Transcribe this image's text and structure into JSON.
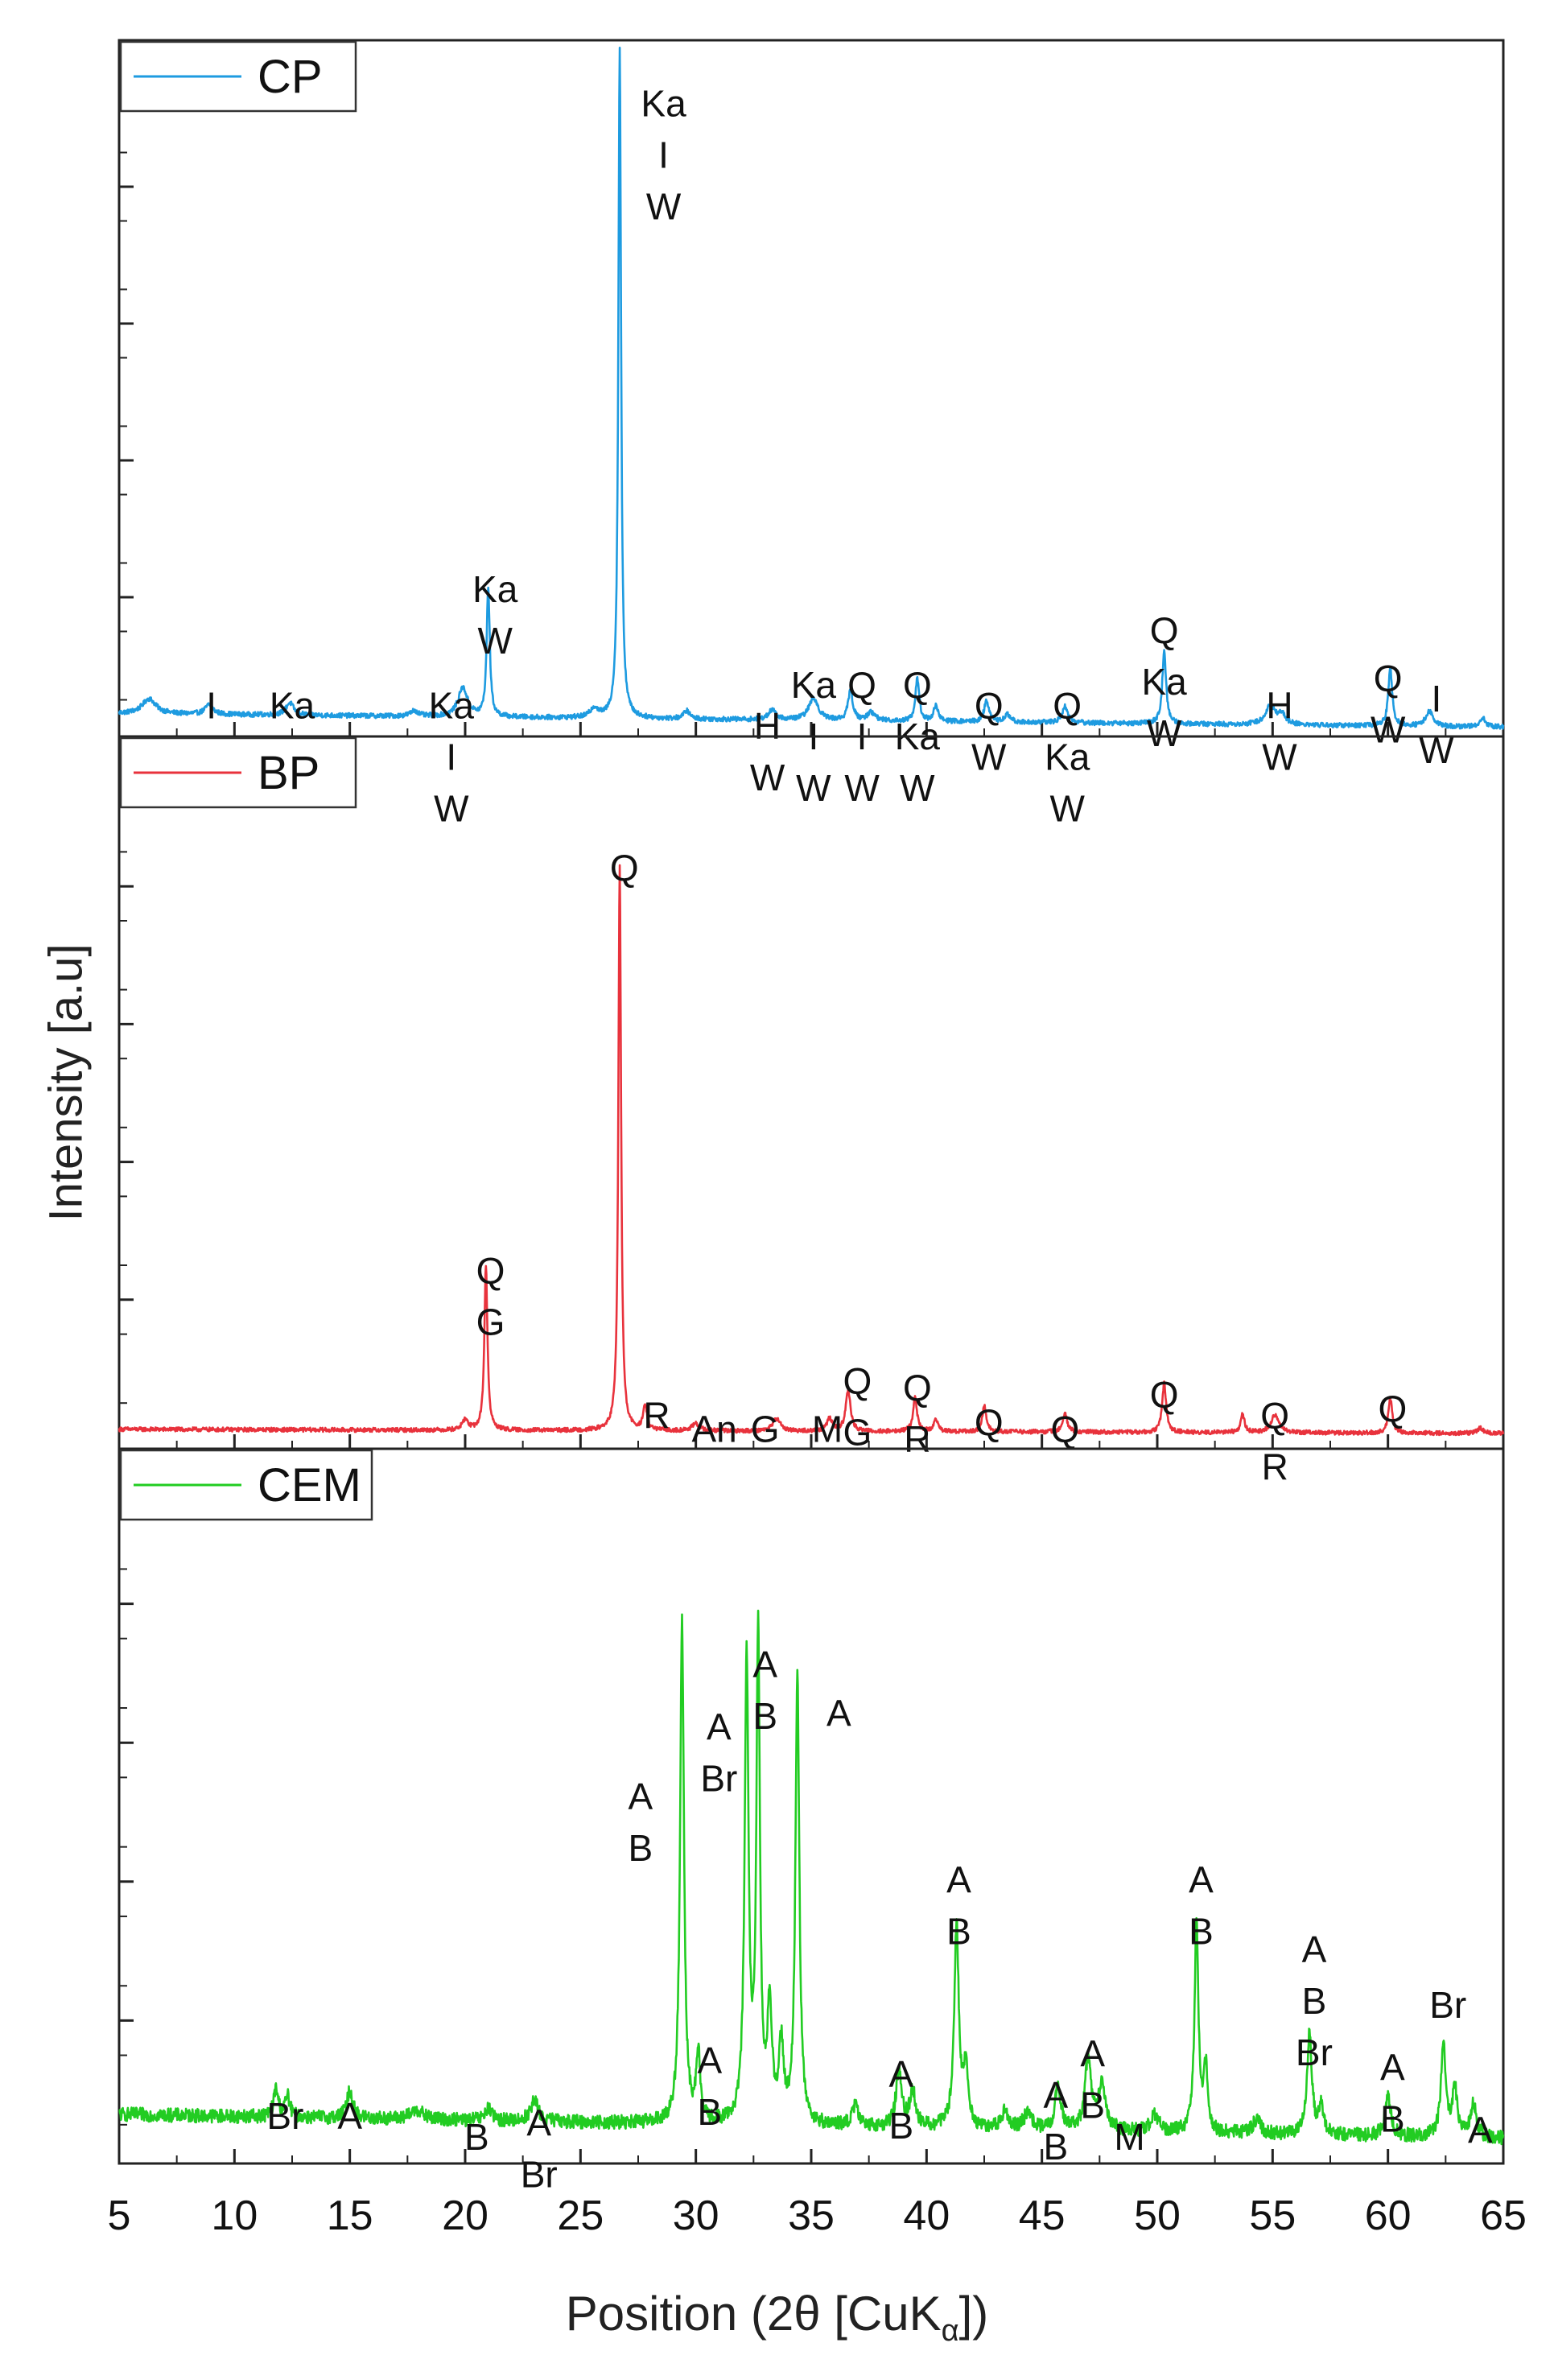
{
  "chart_data": {
    "type": "line",
    "xlabel": {
      "prefix": "Position (2θ [CuK",
      "subscript": "α",
      "suffix": "])"
    },
    "ylabel": "Intensity [a.u]",
    "xlim": [
      5,
      65
    ],
    "x_ticks": [
      5,
      10,
      15,
      20,
      25,
      30,
      35,
      40,
      45,
      50,
      55,
      60,
      65
    ],
    "x_tick_labels": [
      "5",
      "10",
      "15",
      "20",
      "25",
      "30",
      "35",
      "40",
      "45",
      "50",
      "55",
      "60",
      "65"
    ],
    "panels": [
      {
        "legend": "CP",
        "color": "#1e9be0",
        "ylim": [
          0,
          100
        ],
        "baseline": 3,
        "baseline_end": 1,
        "noise": 0.35,
        "peaks": [
          {
            "x": 6.3,
            "h": 2.2,
            "w": 0.35
          },
          {
            "x": 8.9,
            "h": 1.4,
            "w": 0.2
          },
          {
            "x": 12.4,
            "h": 1.8,
            "w": 0.2
          },
          {
            "x": 17.8,
            "h": 0.8,
            "w": 0.2
          },
          {
            "x": 19.9,
            "h": 4.2,
            "w": 0.25
          },
          {
            "x": 21.0,
            "h": 19,
            "w": 0.08
          },
          {
            "x": 25.6,
            "h": 1.4,
            "w": 0.2
          },
          {
            "x": 26.7,
            "h": 98,
            "w": 0.07
          },
          {
            "x": 29.6,
            "h": 1.2,
            "w": 0.15
          },
          {
            "x": 33.3,
            "h": 1.4,
            "w": 0.2
          },
          {
            "x": 35.1,
            "h": 3.2,
            "w": 0.25
          },
          {
            "x": 36.7,
            "h": 4.4,
            "w": 0.12
          },
          {
            "x": 37.6,
            "h": 1.2,
            "w": 0.2
          },
          {
            "x": 39.6,
            "h": 6.2,
            "w": 0.1
          },
          {
            "x": 40.4,
            "h": 2.2,
            "w": 0.12
          },
          {
            "x": 42.6,
            "h": 3.2,
            "w": 0.12
          },
          {
            "x": 43.5,
            "h": 1.1,
            "w": 0.15
          },
          {
            "x": 46.0,
            "h": 2.4,
            "w": 0.15
          },
          {
            "x": 50.3,
            "h": 10.5,
            "w": 0.1
          },
          {
            "x": 54.9,
            "h": 2.8,
            "w": 0.25
          },
          {
            "x": 55.4,
            "h": 1.4,
            "w": 0.2
          },
          {
            "x": 60.1,
            "h": 8.5,
            "w": 0.1
          },
          {
            "x": 61.8,
            "h": 2.2,
            "w": 0.2
          },
          {
            "x": 64.1,
            "h": 1.3,
            "w": 0.15
          }
        ],
        "annotations": [
          {
            "x": 9.0,
            "y": 7.5,
            "lines": [
              "I"
            ]
          },
          {
            "x": 12.5,
            "y": 7.5,
            "lines": [
              "Ka"
            ]
          },
          {
            "x": 19.4,
            "y": 7.5,
            "lines": [
              "Ka",
              "I",
              "W"
            ]
          },
          {
            "x": 21.3,
            "y": 24.5,
            "lines": [
              "Ka",
              "W"
            ]
          },
          {
            "x": 28.6,
            "y": 95.5,
            "lines": [
              "Ka",
              "I",
              "W"
            ]
          },
          {
            "x": 33.1,
            "y": 4.5,
            "lines": [
              "H",
              "W"
            ]
          },
          {
            "x": 35.1,
            "y": 10.5,
            "lines": [
              "Ka",
              "I",
              "W"
            ]
          },
          {
            "x": 37.2,
            "y": 10.5,
            "lines": [
              "Q",
              "I",
              "W"
            ]
          },
          {
            "x": 39.6,
            "y": 10.5,
            "lines": [
              "Q",
              "Ka",
              "W"
            ]
          },
          {
            "x": 42.7,
            "y": 7.5,
            "lines": [
              "Q",
              "W"
            ]
          },
          {
            "x": 46.1,
            "y": 7.5,
            "lines": [
              "Q",
              "Ka",
              "W"
            ]
          },
          {
            "x": 50.3,
            "y": 18.5,
            "lines": [
              "Q",
              "Ka",
              "W"
            ]
          },
          {
            "x": 55.3,
            "y": 7.5,
            "lines": [
              "H",
              "W"
            ]
          },
          {
            "x": 60.0,
            "y": 11.5,
            "lines": [
              "Q",
              "W"
            ]
          },
          {
            "x": 62.1,
            "y": 8.5,
            "lines": [
              "I",
              "W"
            ]
          }
        ]
      },
      {
        "legend": "BP",
        "color": "#e8323c",
        "ylim": [
          0,
          100
        ],
        "baseline": 1.2,
        "baseline_end": 0.6,
        "noise": 0.3,
        "peaks": [
          {
            "x": 20.0,
            "h": 1.5,
            "w": 0.15
          },
          {
            "x": 20.9,
            "h": 24,
            "w": 0.08
          },
          {
            "x": 26.7,
            "h": 82,
            "w": 0.07
          },
          {
            "x": 27.8,
            "h": 3.5,
            "w": 0.1
          },
          {
            "x": 30.0,
            "h": 1.0,
            "w": 0.2
          },
          {
            "x": 33.5,
            "h": 1.8,
            "w": 0.2
          },
          {
            "x": 35.8,
            "h": 1.8,
            "w": 0.15
          },
          {
            "x": 36.6,
            "h": 6.0,
            "w": 0.12
          },
          {
            "x": 39.5,
            "h": 5.0,
            "w": 0.1
          },
          {
            "x": 40.4,
            "h": 1.6,
            "w": 0.12
          },
          {
            "x": 42.5,
            "h": 3.8,
            "w": 0.1
          },
          {
            "x": 46.0,
            "h": 2.6,
            "w": 0.12
          },
          {
            "x": 50.3,
            "h": 7.2,
            "w": 0.1
          },
          {
            "x": 53.7,
            "h": 2.6,
            "w": 0.1
          },
          {
            "x": 55.1,
            "h": 2.6,
            "w": 0.2
          },
          {
            "x": 60.1,
            "h": 5.0,
            "w": 0.1
          },
          {
            "x": 64.0,
            "h": 0.8,
            "w": 0.15
          }
        ],
        "annotations": [
          {
            "x": 21.1,
            "y": 27.5,
            "lines": [
              "Q",
              "G"
            ]
          },
          {
            "x": 26.9,
            "y": 86,
            "lines": [
              "Q"
            ]
          },
          {
            "x": 28.3,
            "y": 6.5,
            "lines": [
              "R"
            ]
          },
          {
            "x": 30.8,
            "y": 4.5,
            "lines": [
              "An"
            ]
          },
          {
            "x": 33.0,
            "y": 4.5,
            "lines": [
              "G"
            ]
          },
          {
            "x": 35.7,
            "y": 4.5,
            "lines": [
              "M"
            ]
          },
          {
            "x": 37.0,
            "y": 11.5,
            "lines": [
              "Q",
              "G"
            ]
          },
          {
            "x": 39.6,
            "y": 10.5,
            "lines": [
              "Q",
              "R"
            ]
          },
          {
            "x": 42.7,
            "y": 5.5,
            "lines": [
              "Q"
            ]
          },
          {
            "x": 46.0,
            "y": 4.5,
            "lines": [
              "Q"
            ]
          },
          {
            "x": 50.3,
            "y": 9.5,
            "lines": [
              "Q"
            ]
          },
          {
            "x": 55.1,
            "y": 6.5,
            "lines": [
              "Q",
              "R"
            ]
          },
          {
            "x": 60.2,
            "y": 7.5,
            "lines": [
              "Q"
            ]
          }
        ]
      },
      {
        "legend": "CEM",
        "color": "#22cc22",
        "ylim": [
          0,
          100
        ],
        "baseline": 6.5,
        "baseline_end": 3,
        "noise": 1.0,
        "peaks": [
          {
            "x": 11.8,
            "h": 4,
            "w": 0.12
          },
          {
            "x": 12.3,
            "h": 3,
            "w": 0.12
          },
          {
            "x": 15.0,
            "h": 4,
            "w": 0.15
          },
          {
            "x": 17.9,
            "h": 1.4,
            "w": 0.3
          },
          {
            "x": 21.0,
            "h": 1.8,
            "w": 0.15
          },
          {
            "x": 23.0,
            "h": 3,
            "w": 0.2
          },
          {
            "x": 29.4,
            "h": 72,
            "w": 0.1
          },
          {
            "x": 30.1,
            "h": 10,
            "w": 0.1
          },
          {
            "x": 32.2,
            "h": 67,
            "w": 0.1
          },
          {
            "x": 32.7,
            "h": 70,
            "w": 0.09
          },
          {
            "x": 33.2,
            "h": 16,
            "w": 0.12
          },
          {
            "x": 33.7,
            "h": 11,
            "w": 0.12
          },
          {
            "x": 34.4,
            "h": 65,
            "w": 0.1
          },
          {
            "x": 36.9,
            "h": 3,
            "w": 0.15
          },
          {
            "x": 38.8,
            "h": 8,
            "w": 0.15
          },
          {
            "x": 39.4,
            "h": 5,
            "w": 0.15
          },
          {
            "x": 41.3,
            "h": 29,
            "w": 0.12
          },
          {
            "x": 41.7,
            "h": 8,
            "w": 0.12
          },
          {
            "x": 43.4,
            "h": 2.5,
            "w": 0.2
          },
          {
            "x": 44.4,
            "h": 2.5,
            "w": 0.2
          },
          {
            "x": 45.7,
            "h": 6.5,
            "w": 0.15
          },
          {
            "x": 47.0,
            "h": 10.5,
            "w": 0.15
          },
          {
            "x": 47.6,
            "h": 6.5,
            "w": 0.2
          },
          {
            "x": 49.9,
            "h": 2.5,
            "w": 0.2
          },
          {
            "x": 51.7,
            "h": 30,
            "w": 0.1
          },
          {
            "x": 52.1,
            "h": 9,
            "w": 0.1
          },
          {
            "x": 54.3,
            "h": 2,
            "w": 0.2
          },
          {
            "x": 56.6,
            "h": 15,
            "w": 0.12
          },
          {
            "x": 57.1,
            "h": 4,
            "w": 0.12
          },
          {
            "x": 60.0,
            "h": 6,
            "w": 0.15
          },
          {
            "x": 62.4,
            "h": 14,
            "w": 0.12
          },
          {
            "x": 62.9,
            "h": 7,
            "w": 0.12
          },
          {
            "x": 63.7,
            "h": 5,
            "w": 0.15
          }
        ],
        "annotations": [
          {
            "x": 12.2,
            "y": 9.5,
            "lines": [
              "Br"
            ]
          },
          {
            "x": 15.0,
            "y": 9.5,
            "lines": [
              "A"
            ]
          },
          {
            "x": 20.5,
            "y": 6.5,
            "lines": [
              "B"
            ]
          },
          {
            "x": 23.2,
            "y": 8.5,
            "lines": [
              "A",
              "Br"
            ]
          },
          {
            "x": 27.6,
            "y": 55.5,
            "lines": [
              "A",
              "B"
            ]
          },
          {
            "x": 30.6,
            "y": 17.5,
            "lines": [
              "A",
              "B"
            ]
          },
          {
            "x": 31.0,
            "y": 65.5,
            "lines": [
              "A",
              "Br"
            ]
          },
          {
            "x": 33.0,
            "y": 74.5,
            "lines": [
              "A",
              "B"
            ]
          },
          {
            "x": 36.2,
            "y": 67.5,
            "lines": [
              "A"
            ]
          },
          {
            "x": 38.9,
            "y": 15.5,
            "lines": [
              "A",
              "B"
            ]
          },
          {
            "x": 41.4,
            "y": 43.5,
            "lines": [
              "A",
              "B"
            ]
          },
          {
            "x": 45.6,
            "y": 12.5,
            "lines": [
              "A",
              "B"
            ]
          },
          {
            "x": 47.2,
            "y": 18.5,
            "lines": [
              "A",
              "B"
            ]
          },
          {
            "x": 48.8,
            "y": 6.5,
            "lines": [
              "M"
            ]
          },
          {
            "x": 51.9,
            "y": 43.5,
            "lines": [
              "A",
              "B"
            ]
          },
          {
            "x": 56.8,
            "y": 33.5,
            "lines": [
              "A",
              "B",
              "Br"
            ]
          },
          {
            "x": 60.2,
            "y": 16.5,
            "lines": [
              "A",
              "B"
            ]
          },
          {
            "x": 62.6,
            "y": 25.5,
            "lines": [
              "Br"
            ]
          },
          {
            "x": 64.0,
            "y": 7.5,
            "lines": [
              "A"
            ]
          }
        ]
      }
    ]
  }
}
